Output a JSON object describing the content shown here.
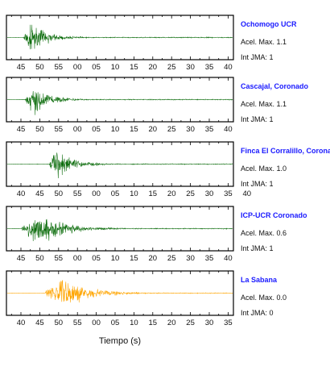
{
  "chart_data": {
    "type": "line",
    "xlabel": "Tiempo (s)",
    "panels": [
      {
        "station": "Ochomogo UCR",
        "accel_label": "Acel. Max. 1.1",
        "jma_label": "Int JMA: 1",
        "color": "#0a6b0a",
        "tick_labels": [
          "45",
          "50",
          "55",
          "00",
          "05",
          "10",
          "15",
          "20",
          "25",
          "30",
          "35",
          "40"
        ],
        "signal": {
          "onset_s": 45.7,
          "peak_s": 47.4,
          "duration_s": 14,
          "relative_amplitude": 0.95
        }
      },
      {
        "station": "Cascajal, Coronado",
        "accel_label": "Acel. Max. 1.1",
        "jma_label": "Int JMA: 1",
        "color": "#0a6b0a",
        "tick_labels": [
          "45",
          "50",
          "55",
          "00",
          "05",
          "10",
          "15",
          "20",
          "25",
          "30",
          "35",
          "40"
        ],
        "signal": {
          "onset_s": 46.2,
          "peak_s": 48.3,
          "duration_s": 14,
          "relative_amplitude": 0.95
        }
      },
      {
        "station": "Finca El Corralillo, Coronado",
        "accel_label": "Acel. Max. 1.0",
        "jma_label": "Int JMA: 1",
        "color": "#0a6b0a",
        "tick_labels": [
          "40",
          "45",
          "50",
          "55",
          "00",
          "05",
          "10",
          "15",
          "20",
          "25",
          "30",
          "35",
          "40"
        ],
        "signal": {
          "onset_s": 47.6,
          "peak_s": 49.5,
          "duration_s": 14,
          "relative_amplitude": 0.95
        }
      },
      {
        "station": "ICP-UCR Coronado",
        "accel_label": "Acel. Max. 0.6",
        "jma_label": "Int JMA: 1",
        "color": "#0a6b0a",
        "tick_labels": [
          "45",
          "50",
          "55",
          "00",
          "05",
          "10",
          "15",
          "20",
          "25",
          "30",
          "35",
          "40"
        ],
        "signal": {
          "onset_s": 45.2,
          "peak_s": 49.8,
          "duration_s": 22,
          "relative_amplitude": 0.95
        }
      },
      {
        "station": "La Sabana",
        "accel_label": "Acel. Max. 0.0",
        "jma_label": "Int JMA: 0",
        "color": "#ffa500",
        "tick_labels": [
          "40",
          "45",
          "50",
          "55",
          "00",
          "05",
          "10",
          "15",
          "20",
          "25",
          "30",
          "35"
        ],
        "signal": {
          "onset_s": 46.5,
          "peak_s": 51.2,
          "duration_s": 22,
          "relative_amplitude": 0.95
        }
      }
    ]
  }
}
